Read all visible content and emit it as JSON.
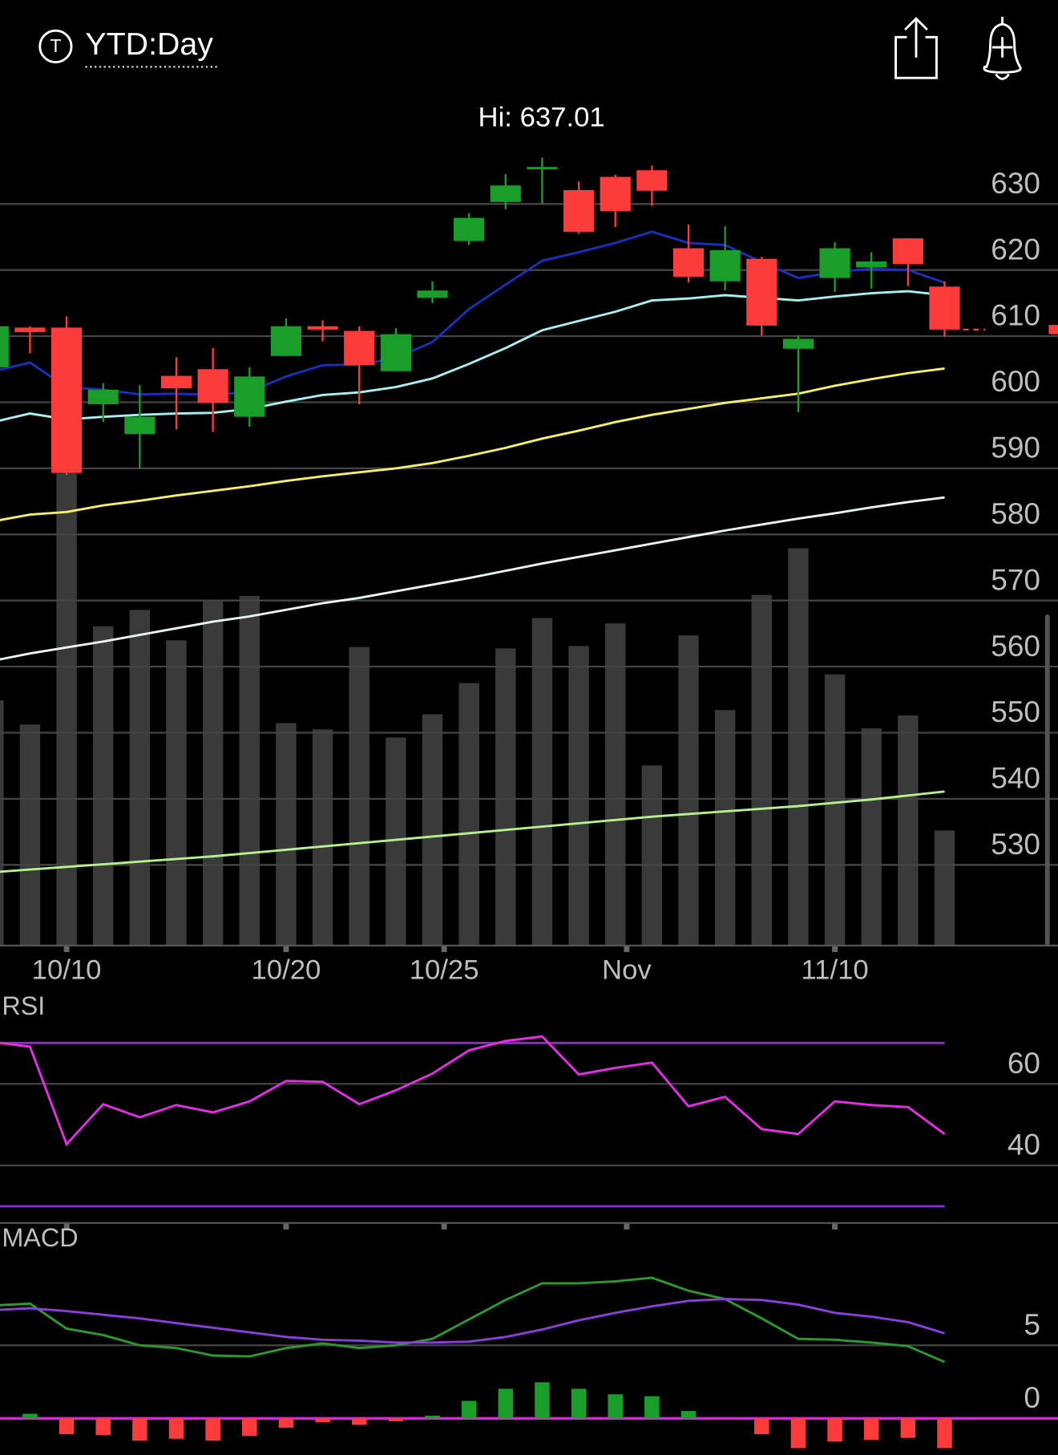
{
  "header": {
    "icon_letter": "T",
    "range": "YTD:Day",
    "high": "Hi: 637.01"
  },
  "chart_data": [
    {
      "type": "candlestick",
      "x": [
        0,
        1,
        2,
        3,
        4,
        5,
        6,
        7,
        8,
        9,
        10,
        11,
        12,
        13,
        14,
        15,
        16,
        17,
        18,
        19,
        20,
        21,
        22,
        23,
        24,
        25,
        26
      ],
      "open": [
        605.3,
        611.3,
        611.3,
        599.7,
        595.2,
        604.0,
        605.0,
        597.8,
        607.0,
        611.5,
        610.8,
        604.7,
        615.8,
        624.4,
        630.3,
        635.3,
        632.1,
        634.1,
        635.1,
        623.3,
        618.3,
        621.7,
        608.1,
        618.8,
        620.4,
        624.8,
        617.5
      ],
      "high": [
        612.0,
        611.5,
        613.0,
        602.9,
        602.6,
        606.8,
        608.2,
        605.3,
        612.7,
        612.4,
        611.5,
        611.2,
        618.3,
        628.6,
        634.5,
        637.01,
        633.4,
        634.4,
        635.8,
        626.9,
        626.6,
        622.0,
        610.1,
        624.2,
        622.7,
        624.8,
        618.3
      ],
      "low": [
        605.0,
        607.4,
        589.0,
        597.0,
        590.0,
        595.9,
        595.5,
        596.3,
        607.0,
        609.2,
        599.7,
        604.7,
        615.0,
        623.8,
        629.2,
        630.0,
        625.5,
        626.5,
        629.7,
        618.1,
        616.9,
        610.1,
        598.5,
        616.7,
        617.2,
        617.6,
        609.9
      ],
      "close": [
        611.5,
        610.6,
        589.3,
        601.9,
        597.8,
        602.1,
        599.9,
        603.9,
        611.5,
        611.0,
        605.6,
        610.3,
        616.9,
        627.9,
        632.8,
        635.6,
        625.8,
        628.9,
        632.0,
        619.0,
        623.0,
        611.6,
        609.6,
        623.3,
        621.3,
        620.9,
        611.0
      ],
      "up_color": "#1a9e2a",
      "down_color": "#fd3b3b",
      "series": [
        {
          "color": "#1c2fb8",
          "values": [
            604.7,
            606.0,
            602.3,
            601.9,
            601.2,
            601.3,
            601.1,
            601.6,
            603.9,
            605.6,
            605.7,
            606.7,
            609.1,
            614.1,
            617.8,
            621.4,
            622.7,
            624.1,
            625.8,
            624.1,
            623.8,
            621.2,
            618.8,
            619.7,
            620.2,
            620.0,
            618.1
          ]
        },
        {
          "color": "#a8f0f0",
          "values": [
            597.0,
            598.3,
            597.4,
            597.8,
            598.1,
            598.3,
            598.4,
            599.0,
            600.1,
            601.1,
            601.5,
            602.3,
            603.6,
            605.8,
            608.2,
            610.9,
            612.3,
            613.7,
            615.4,
            615.7,
            616.2,
            615.8,
            615.4,
            616.0,
            616.5,
            616.8,
            616.2
          ]
        },
        {
          "color": "#f5f060",
          "values": [
            582.0,
            583.0,
            583.4,
            584.4,
            585.1,
            585.9,
            586.6,
            587.3,
            588.1,
            588.8,
            589.4,
            590.0,
            590.8,
            591.9,
            593.1,
            594.5,
            595.7,
            597.0,
            598.1,
            599.0,
            599.9,
            600.6,
            601.3,
            602.5,
            603.5,
            604.4,
            605.1
          ]
        },
        {
          "color": "#e8f4f4",
          "values": [
            560.9,
            562.0,
            562.9,
            563.8,
            564.8,
            565.8,
            566.8,
            567.6,
            568.6,
            569.6,
            570.4,
            571.4,
            572.4,
            573.4,
            574.5,
            575.6,
            576.6,
            577.6,
            578.6,
            579.6,
            580.6,
            581.5,
            582.4,
            583.2,
            584.1,
            584.9,
            585.6
          ]
        },
        {
          "color": "#b4f08c",
          "values": [
            528.9,
            529.3,
            529.7,
            530.1,
            530.5,
            530.9,
            531.3,
            531.8,
            532.3,
            532.8,
            533.3,
            533.8,
            534.3,
            534.8,
            535.3,
            535.8,
            536.3,
            536.8,
            537.3,
            537.7,
            538.1,
            538.5,
            538.9,
            539.4,
            539.9,
            540.5,
            541.1
          ]
        }
      ],
      "xlim": [
        0.18,
        29.1
      ],
      "ylim": [
        517.8,
        639.8
      ],
      "yticks": [
        530,
        540,
        550,
        560,
        570,
        580,
        590,
        600,
        610,
        620,
        630
      ],
      "xticks": [
        {
          "value": 2,
          "label": "10/10"
        },
        {
          "value": 8,
          "label": "10/20"
        },
        {
          "value": 12.32,
          "label": "10/25"
        },
        {
          "value": 17.31,
          "label": "Nov"
        },
        {
          "value": 23,
          "label": "11/10"
        }
      ],
      "grid": true
    },
    {
      "type": "bar",
      "x": [
        0,
        1,
        2,
        3,
        4,
        5,
        6,
        7,
        8,
        9,
        10,
        11,
        12,
        13,
        14,
        15,
        16,
        17,
        18,
        19,
        20,
        21,
        22,
        23,
        24,
        25,
        26
      ],
      "values": [
        50.9,
        45.9,
        98.1,
        66.3,
        69.7,
        63.4,
        71.7,
        72.6,
        46.2,
        44.9,
        62.0,
        43.2,
        48.0,
        54.5,
        61.7,
        68.0,
        62.2,
        66.9,
        37.4,
        64.4,
        48.9,
        72.8,
        82.5,
        56.3,
        45.1,
        47.8,
        23.9
      ],
      "color": "#3a3a3a",
      "xlim": [
        0.18,
        29.1
      ],
      "ylim": [
        0,
        100
      ]
    },
    {
      "type": "line",
      "title": "RSI",
      "x": [
        0,
        1,
        2,
        3,
        4,
        5,
        6,
        7,
        8,
        9,
        10,
        11,
        12,
        13,
        14,
        15,
        16,
        17,
        18,
        19,
        20,
        21,
        22,
        23,
        24,
        25,
        26
      ],
      "series": [
        {
          "color": "#e52ee5",
          "values": [
            70.2,
            69.1,
            45.2,
            55.0,
            51.8,
            54.8,
            53.0,
            55.7,
            60.7,
            60.5,
            55.0,
            58.4,
            62.5,
            68.2,
            70.5,
            71.6,
            62.3,
            63.9,
            65.2,
            54.5,
            56.8,
            48.9,
            47.7,
            55.7,
            54.8,
            54.3,
            47.7
          ]
        }
      ],
      "levels": [
        70,
        30
      ],
      "level_color": "#8a2be2",
      "xlim": [
        0.18,
        29.1
      ],
      "ylim": [
        25.9,
        80
      ],
      "yticks": [
        40,
        60
      ],
      "grid": true
    },
    {
      "type": "macd",
      "title": "MACD",
      "x": [
        0,
        1,
        2,
        3,
        4,
        5,
        6,
        7,
        8,
        9,
        10,
        11,
        12,
        13,
        14,
        15,
        16,
        17,
        18,
        19,
        20,
        21,
        22,
        23,
        24,
        25,
        26
      ],
      "series": [
        {
          "color": "#2e9a2e",
          "values": [
            7.72,
            7.85,
            6.14,
            5.7,
            5.0,
            4.81,
            4.3,
            4.24,
            4.81,
            5.13,
            4.81,
            5.0,
            5.44,
            6.77,
            8.1,
            9.24,
            9.24,
            9.37,
            9.62,
            8.73,
            8.16,
            6.84,
            5.44,
            5.38,
            5.19,
            4.94,
            3.86
          ]
        },
        {
          "color": "#8a3fd8",
          "values": [
            7.41,
            7.53,
            7.34,
            7.09,
            6.84,
            6.52,
            6.2,
            5.89,
            5.57,
            5.38,
            5.32,
            5.19,
            5.19,
            5.25,
            5.57,
            6.08,
            6.71,
            7.22,
            7.66,
            8.04,
            8.16,
            8.1,
            7.78,
            7.22,
            6.96,
            6.58,
            5.82
          ]
        }
      ],
      "histogram": {
        "values": [
          0,
          0.32,
          -1.08,
          -1.14,
          -1.52,
          -1.39,
          -1.52,
          -1.2,
          -0.63,
          -0.25,
          -0.44,
          -0.19,
          0.19,
          1.2,
          2.03,
          2.47,
          2.03,
          1.65,
          1.52,
          0.51,
          0,
          -1.08,
          -2.03,
          -1.58,
          -1.46,
          -1.33,
          -2.03
        ],
        "up_color": "#1a9e2a",
        "down_color": "#fd3b3b"
      },
      "zero_color": "#e020e0",
      "xlim": [
        0.18,
        29.1
      ],
      "ylim": [
        -2.5,
        12.6
      ],
      "yticks": [
        0,
        5
      ],
      "grid": true
    }
  ]
}
